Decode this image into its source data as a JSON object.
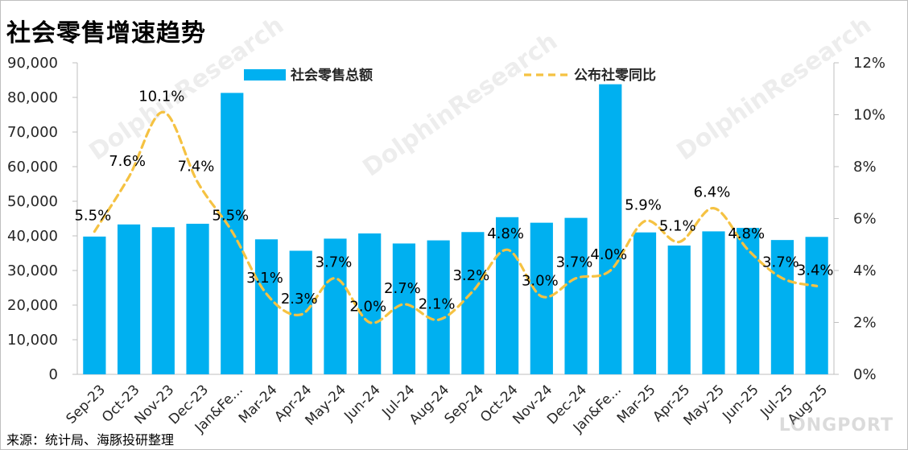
{
  "title": "社会零售增速趋势",
  "source": "来源：统计局、海豚投研整理",
  "watermark": "LONGPORT",
  "chart_data": {
    "type": "bar+line",
    "categories": [
      "Sep-23",
      "Oct-23",
      "Nov-23",
      "Dec-23",
      "Jan&Fe...",
      "Mar-24",
      "Apr-24",
      "May-24",
      "Jun-24",
      "Jul-24",
      "Aug-24",
      "Sep-24",
      "Oct-24",
      "Nov-24",
      "Dec-24",
      "Jan&Fe...",
      "Mar-25",
      "Apr-25",
      "May-25",
      "Jun-25",
      "Jul-25",
      "Aug-25"
    ],
    "series": [
      {
        "name": "社会零售总额",
        "type": "bar",
        "axis": "left",
        "color": "#00b0f0",
        "values": [
          39800,
          43300,
          42500,
          43500,
          81300,
          39000,
          35700,
          39200,
          40700,
          37800,
          38700,
          41100,
          45400,
          43800,
          45200,
          83800,
          41000,
          37200,
          41300,
          42300,
          38800,
          39700
        ]
      },
      {
        "name": "公布社零同比",
        "type": "line",
        "axis": "right",
        "color": "#f5c242",
        "values": [
          5.5,
          7.6,
          10.1,
          7.4,
          5.5,
          3.1,
          2.3,
          3.7,
          2.0,
          2.7,
          2.1,
          3.2,
          4.8,
          3.0,
          3.7,
          4.0,
          5.9,
          5.1,
          6.4,
          4.8,
          3.7,
          3.4
        ],
        "labels": [
          "5.5%",
          "7.6%",
          "10.1%",
          "7.4%",
          "5.5%",
          "3.1%",
          "2.3%",
          "3.7%",
          "2.0%",
          "2.7%",
          "2.1%",
          "3.2%",
          "4.8%",
          "3.0%",
          "3.7%",
          "4.0%",
          "5.9%",
          "5.1%",
          "6.4%",
          "4.8%",
          "3.7%",
          "3.4%"
        ]
      }
    ],
    "y_left": {
      "min": 0,
      "max": 90000,
      "ticks": [
        0,
        10000,
        20000,
        30000,
        40000,
        50000,
        60000,
        70000,
        80000,
        90000
      ],
      "tick_labels": [
        "0",
        "10,000",
        "20,000",
        "30,000",
        "40,000",
        "50,000",
        "60,000",
        "70,000",
        "80,000",
        "90,000"
      ]
    },
    "y_right": {
      "min": 0,
      "max": 12,
      "ticks": [
        0,
        2,
        4,
        6,
        8,
        10,
        12
      ],
      "tick_labels": [
        "0%",
        "2%",
        "4%",
        "6%",
        "8%",
        "10%",
        "12%"
      ]
    },
    "legend": [
      "社会零售总额",
      "公布社零同比"
    ],
    "legend_position": "top"
  }
}
